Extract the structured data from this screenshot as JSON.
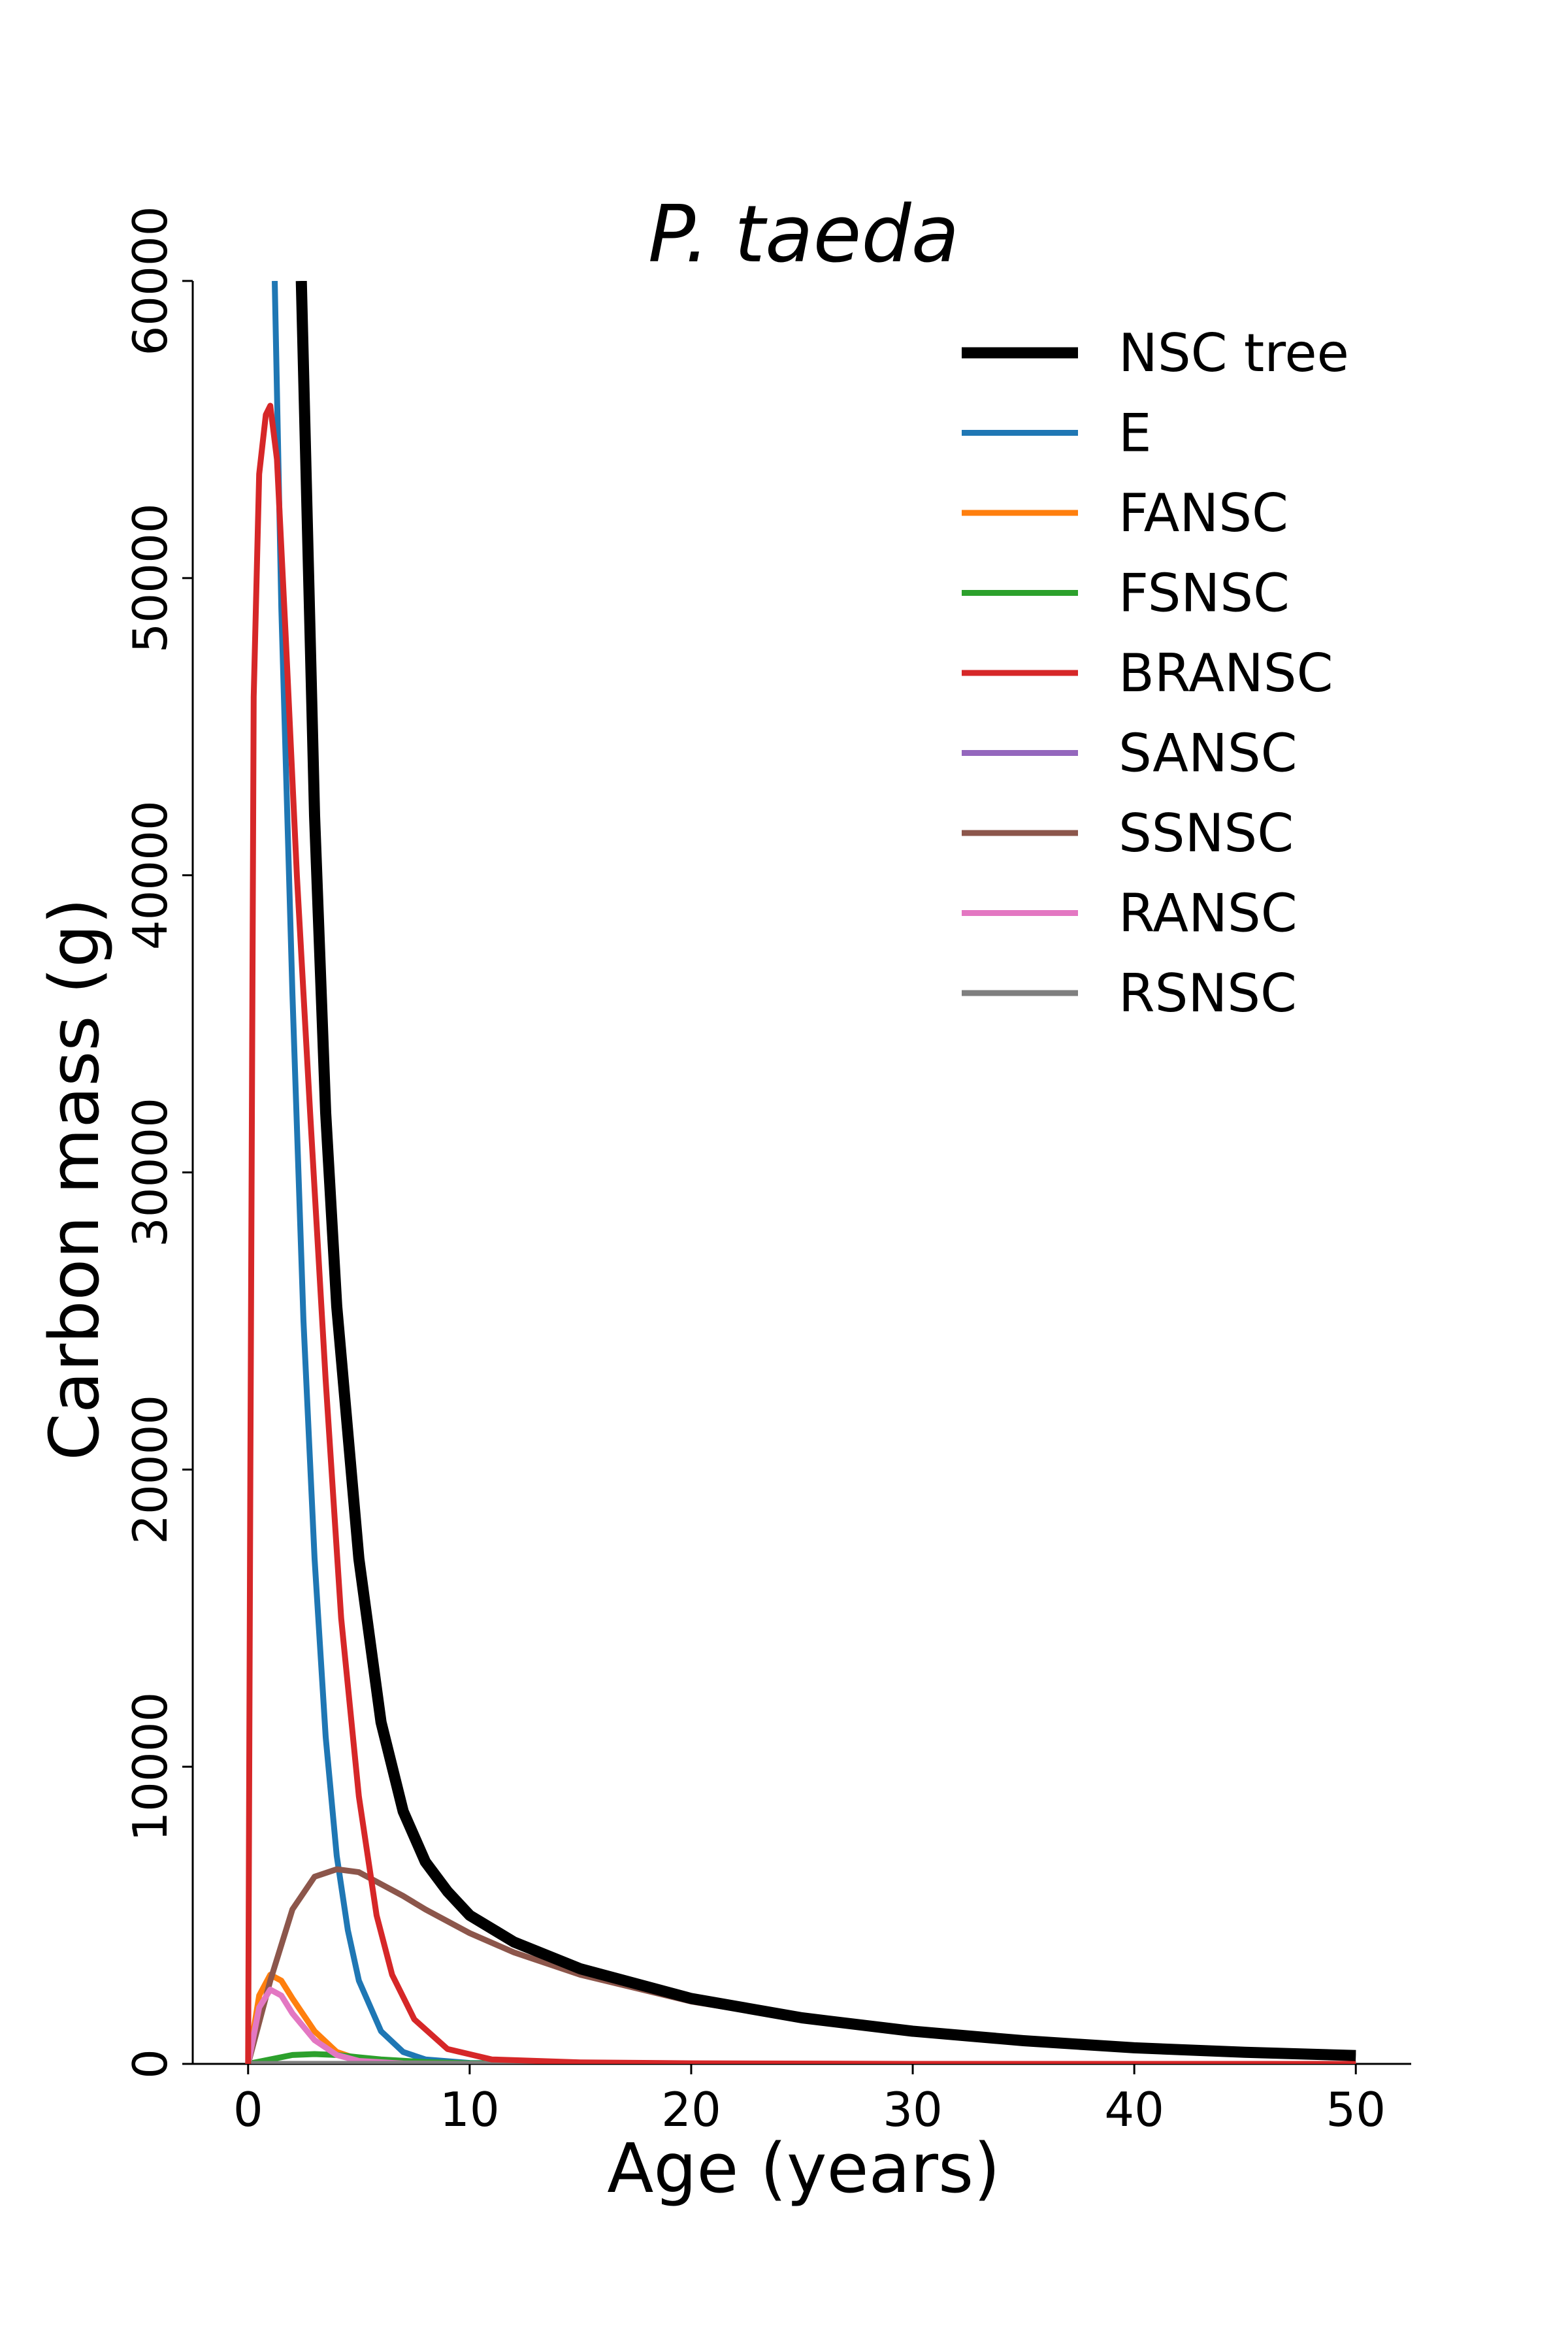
{
  "chart_data": {
    "type": "line",
    "title": "P. taeda",
    "xlabel": "Age (years)",
    "ylabel": "Carbon mass (g)",
    "xlim": [
      -2.5,
      52.5
    ],
    "ylim": [
      0,
      60000
    ],
    "xticks": [
      0,
      10,
      20,
      30,
      40,
      50
    ],
    "yticks": [
      0,
      10000,
      20000,
      30000,
      40000,
      50000,
      60000
    ],
    "legend_position": "top-right",
    "grid": false,
    "series": [
      {
        "name": "NSC tree",
        "color": "#000000",
        "emphasis": "thick",
        "points": [
          [
            2.4,
            60000
          ],
          [
            3.0,
            42000
          ],
          [
            3.5,
            32000
          ],
          [
            4.0,
            25500
          ],
          [
            5.0,
            17000
          ],
          [
            6.0,
            11500
          ],
          [
            7.0,
            8500
          ],
          [
            8.0,
            6800
          ],
          [
            9.0,
            5800
          ],
          [
            10.0,
            5000
          ],
          [
            12.0,
            4100
          ],
          [
            15.0,
            3200
          ],
          [
            20.0,
            2200
          ],
          [
            25.0,
            1550
          ],
          [
            30.0,
            1100
          ],
          [
            35.0,
            780
          ],
          [
            40.0,
            540
          ],
          [
            45.0,
            390
          ],
          [
            50.0,
            280
          ]
        ]
      },
      {
        "name": "E",
        "color": "#1f77b4",
        "points": [
          [
            1.2,
            60000
          ],
          [
            1.5,
            49000
          ],
          [
            2.0,
            36000
          ],
          [
            2.5,
            25000
          ],
          [
            3.0,
            17000
          ],
          [
            3.5,
            11000
          ],
          [
            4.0,
            7000
          ],
          [
            4.5,
            4500
          ],
          [
            5.0,
            2800
          ],
          [
            6.0,
            1100
          ],
          [
            7.0,
            400
          ],
          [
            8.0,
            150
          ],
          [
            10.0,
            30
          ],
          [
            15.0,
            0
          ],
          [
            50.0,
            0
          ]
        ]
      },
      {
        "name": "FANSC",
        "color": "#ff7f0e",
        "points": [
          [
            0,
            0
          ],
          [
            0.5,
            2300
          ],
          [
            1.0,
            3000
          ],
          [
            1.5,
            2800
          ],
          [
            2.0,
            2200
          ],
          [
            3.0,
            1100
          ],
          [
            4.0,
            400
          ],
          [
            5.0,
            150
          ],
          [
            7.0,
            20
          ],
          [
            10.0,
            0
          ],
          [
            50.0,
            0
          ]
        ]
      },
      {
        "name": "FSNSC",
        "color": "#2ca02c",
        "points": [
          [
            0,
            0
          ],
          [
            1.0,
            150
          ],
          [
            2.0,
            300
          ],
          [
            3.0,
            330
          ],
          [
            4.0,
            300
          ],
          [
            5.0,
            220
          ],
          [
            6.0,
            150
          ],
          [
            8.0,
            60
          ],
          [
            10.0,
            20
          ],
          [
            15.0,
            0
          ],
          [
            50.0,
            0
          ]
        ]
      },
      {
        "name": "BRANSC",
        "color": "#d62728",
        "points": [
          [
            0,
            0
          ],
          [
            0.1,
            20000
          ],
          [
            0.25,
            46000
          ],
          [
            0.5,
            53500
          ],
          [
            0.8,
            55500
          ],
          [
            1.0,
            55800
          ],
          [
            1.3,
            54000
          ],
          [
            1.7,
            48000
          ],
          [
            2.2,
            40000
          ],
          [
            2.8,
            32000
          ],
          [
            3.5,
            23000
          ],
          [
            4.2,
            15000
          ],
          [
            5.0,
            9000
          ],
          [
            5.8,
            5000
          ],
          [
            6.5,
            3000
          ],
          [
            7.5,
            1500
          ],
          [
            9.0,
            500
          ],
          [
            11.0,
            150
          ],
          [
            15.0,
            50
          ],
          [
            20.0,
            20
          ],
          [
            30.0,
            0
          ],
          [
            50.0,
            0
          ]
        ]
      },
      {
        "name": "SANSC",
        "color": "#9467bd",
        "points": [
          [
            0,
            0
          ],
          [
            50.0,
            0
          ]
        ]
      },
      {
        "name": "SSNSC",
        "color": "#8c564b",
        "points": [
          [
            0,
            0
          ],
          [
            1.0,
            2800
          ],
          [
            2.0,
            5200
          ],
          [
            3.0,
            6300
          ],
          [
            4.0,
            6550
          ],
          [
            5.0,
            6450
          ],
          [
            6.0,
            6050
          ],
          [
            7.0,
            5650
          ],
          [
            8.0,
            5200
          ],
          [
            10.0,
            4400
          ],
          [
            12.0,
            3750
          ],
          [
            15.0,
            3000
          ],
          [
            20.0,
            2100
          ],
          [
            25.0,
            1500
          ],
          [
            30.0,
            1050
          ],
          [
            35.0,
            740
          ],
          [
            40.0,
            510
          ],
          [
            45.0,
            370
          ],
          [
            50.0,
            260
          ]
        ]
      },
      {
        "name": "RANSC",
        "color": "#e377c2",
        "points": [
          [
            0,
            0
          ],
          [
            0.5,
            1900
          ],
          [
            1.0,
            2500
          ],
          [
            1.5,
            2300
          ],
          [
            2.0,
            1700
          ],
          [
            3.0,
            800
          ],
          [
            4.0,
            300
          ],
          [
            5.0,
            100
          ],
          [
            7.0,
            10
          ],
          [
            10.0,
            0
          ],
          [
            50.0,
            0
          ]
        ]
      },
      {
        "name": "RSNSC",
        "color": "#7f7f7f",
        "points": [
          [
            0,
            0
          ],
          [
            50.0,
            0
          ]
        ]
      }
    ]
  }
}
